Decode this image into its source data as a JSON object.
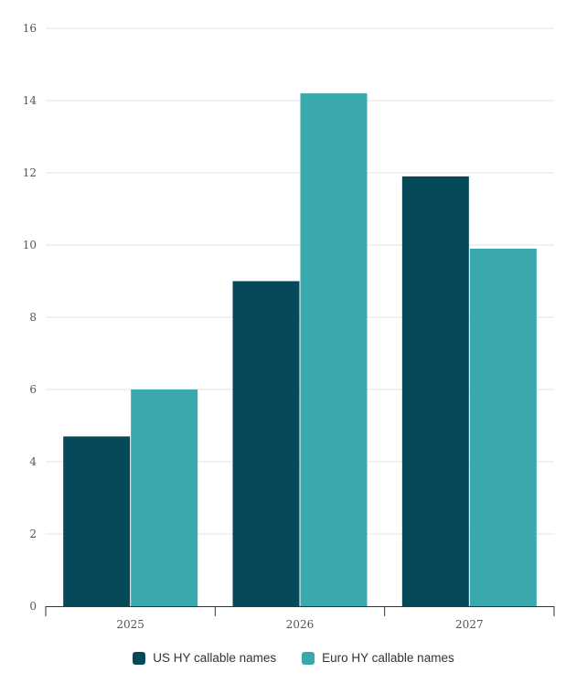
{
  "chart_data": {
    "type": "bar",
    "categories": [
      "2025",
      "2026",
      "2027"
    ],
    "series": [
      {
        "name": "US HY callable names",
        "values": [
          4.7,
          9.0,
          11.9
        ],
        "color": "#064a5a"
      },
      {
        "name": "Euro HY callable names",
        "values": [
          6.0,
          14.2,
          9.9
        ],
        "color": "#3aa9ae"
      }
    ],
    "title": "",
    "xlabel": "",
    "ylabel": "",
    "ylim": [
      0,
      16
    ],
    "yticks": [
      "0",
      "2",
      "4",
      "6",
      "8",
      "10",
      "12",
      "14",
      "16"
    ],
    "grid": true,
    "legend_position": "bottom-center"
  }
}
